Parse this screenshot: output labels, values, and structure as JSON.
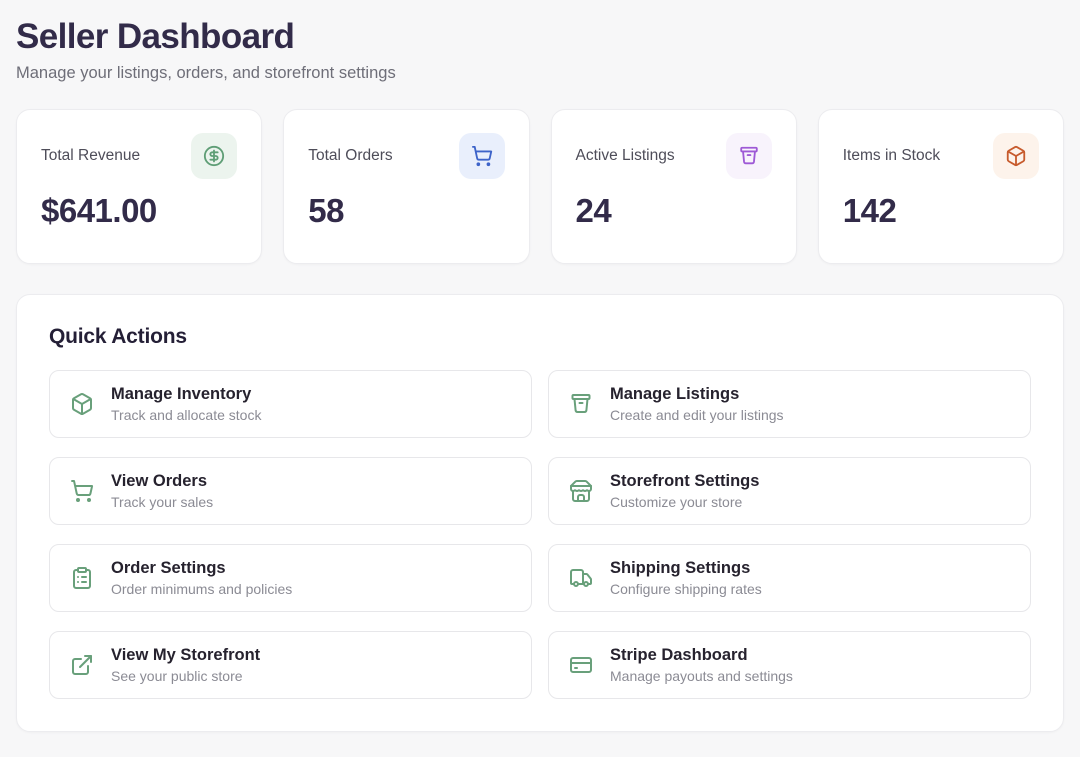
{
  "page": {
    "title": "Seller Dashboard",
    "subtitle": "Manage your listings, orders, and storefront settings"
  },
  "stats": [
    {
      "label": "Total Revenue",
      "value": "$641.00",
      "icon": "dollar-circle-icon",
      "icon_color": "#5f9e76",
      "chip_bg": "#ecf4ee"
    },
    {
      "label": "Total Orders",
      "value": "58",
      "icon": "shopping-cart-icon",
      "icon_color": "#3d63c9",
      "chip_bg": "#e9effc"
    },
    {
      "label": "Active Listings",
      "value": "24",
      "icon": "storage-bin-icon",
      "icon_color": "#9e59d6",
      "chip_bg": "#f8f3fc"
    },
    {
      "label": "Items in Stock",
      "value": "142",
      "icon": "package-icon",
      "icon_color": "#c75b2d",
      "chip_bg": "#fdf3eb"
    }
  ],
  "quick_actions": {
    "heading": "Quick Actions",
    "icon_color": "#69a07b",
    "items": [
      {
        "title": "Manage Inventory",
        "subtitle": "Track and allocate stock",
        "icon": "package-icon"
      },
      {
        "title": "Manage Listings",
        "subtitle": "Create and edit your listings",
        "icon": "storage-bin-icon"
      },
      {
        "title": "View Orders",
        "subtitle": "Track your sales",
        "icon": "shopping-cart-icon"
      },
      {
        "title": "Storefront Settings",
        "subtitle": "Customize your store",
        "icon": "storefront-icon"
      },
      {
        "title": "Order Settings",
        "subtitle": "Order minimums and policies",
        "icon": "clipboard-list-icon"
      },
      {
        "title": "Shipping Settings",
        "subtitle": "Configure shipping rates",
        "icon": "truck-icon"
      },
      {
        "title": "View My Storefront",
        "subtitle": "See your public store",
        "icon": "external-link-icon"
      },
      {
        "title": "Stripe Dashboard",
        "subtitle": "Manage payouts and settings",
        "icon": "credit-card-icon"
      }
    ]
  }
}
